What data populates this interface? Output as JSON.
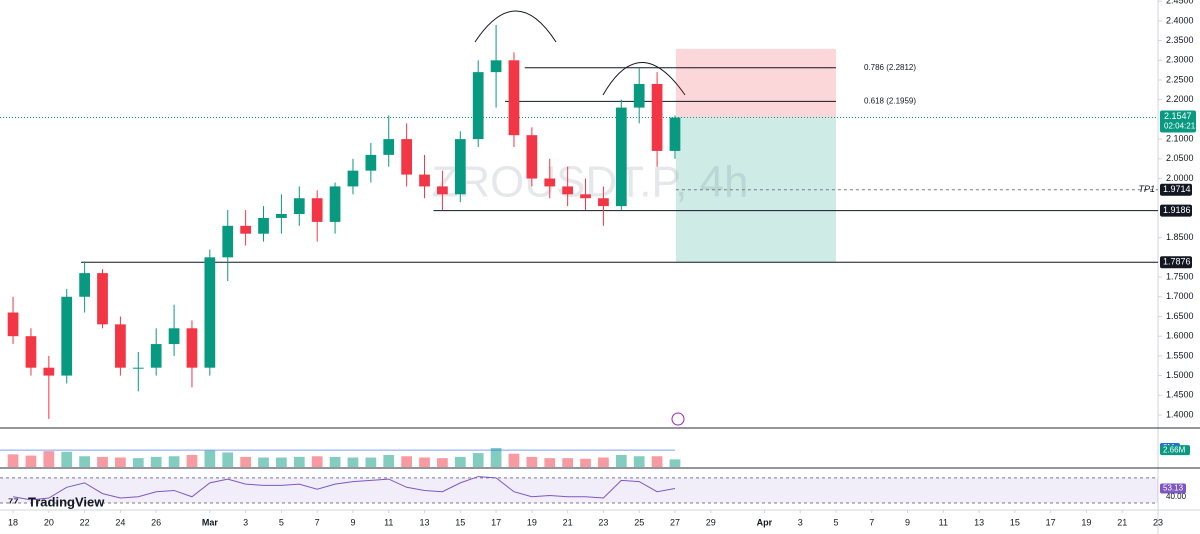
{
  "chart_data": {
    "type": "candlestick",
    "watermark": "ZROUSDT.P, 4h",
    "brand": "TradingView",
    "x": [
      18,
      19,
      20,
      21,
      22,
      23,
      24,
      25,
      26,
      27,
      28,
      29,
      30,
      31,
      32,
      33,
      34,
      35,
      36,
      37,
      38,
      39,
      40,
      41,
      42,
      43,
      44,
      45,
      46,
      47,
      48,
      49,
      50,
      51,
      52,
      53,
      54,
      55
    ],
    "open": [
      1.66,
      1.6,
      1.52,
      1.5,
      1.7,
      1.76,
      1.63,
      1.52,
      1.52,
      1.58,
      1.62,
      1.52,
      1.8,
      1.88,
      1.86,
      1.9,
      1.91,
      1.95,
      1.89,
      1.98,
      2.02,
      2.06,
      2.1,
      2.01,
      1.98,
      1.96,
      2.1,
      2.27,
      2.3,
      2.11,
      2.0,
      1.98,
      1.96,
      1.95,
      1.93,
      2.18,
      2.24,
      2.07
    ],
    "high": [
      1.7,
      1.62,
      1.55,
      1.72,
      1.79,
      1.77,
      1.65,
      1.56,
      1.62,
      1.68,
      1.64,
      1.82,
      1.92,
      1.92,
      1.93,
      1.96,
      1.98,
      1.97,
      1.99,
      2.05,
      2.09,
      2.16,
      2.14,
      2.06,
      2.02,
      2.12,
      2.3,
      2.39,
      2.32,
      2.13,
      2.05,
      2.03,
      2.0,
      1.98,
      2.2,
      2.28,
      2.27,
      2.16
    ],
    "low": [
      1.58,
      1.5,
      1.39,
      1.48,
      1.66,
      1.62,
      1.5,
      1.46,
      1.5,
      1.55,
      1.47,
      1.5,
      1.74,
      1.83,
      1.84,
      1.86,
      1.88,
      1.84,
      1.86,
      1.96,
      1.99,
      2.03,
      1.98,
      1.95,
      1.92,
      1.94,
      2.08,
      2.18,
      2.08,
      1.98,
      1.95,
      1.93,
      1.92,
      1.88,
      1.92,
      2.14,
      2.03,
      2.05
    ],
    "close": [
      1.6,
      1.52,
      1.5,
      1.7,
      1.76,
      1.63,
      1.52,
      1.52,
      1.58,
      1.62,
      1.52,
      1.8,
      1.88,
      1.86,
      1.9,
      1.91,
      1.95,
      1.89,
      1.98,
      2.02,
      2.06,
      2.1,
      2.01,
      1.98,
      1.96,
      2.1,
      2.27,
      2.3,
      2.11,
      2.0,
      1.98,
      1.96,
      1.95,
      1.93,
      2.18,
      2.24,
      2.07,
      2.1547
    ],
    "up_color": "#089981",
    "down_color": "#f23645",
    "xlim": [
      17.27,
      82.0
    ],
    "xticks": [
      {
        "value": 18,
        "label": "18"
      },
      {
        "value": 20,
        "label": "20"
      },
      {
        "value": 22,
        "label": "22"
      },
      {
        "value": 24,
        "label": "24"
      },
      {
        "value": 26,
        "label": "26"
      },
      {
        "value": 29,
        "label": "Mar"
      },
      {
        "value": 31,
        "label": "3"
      },
      {
        "value": 33,
        "label": "5"
      },
      {
        "value": 35,
        "label": "7"
      },
      {
        "value": 37,
        "label": "9"
      },
      {
        "value": 39,
        "label": "11"
      },
      {
        "value": 41,
        "label": "13"
      },
      {
        "value": 43,
        "label": "15"
      },
      {
        "value": 45,
        "label": "17"
      },
      {
        "value": 47,
        "label": "19"
      },
      {
        "value": 49,
        "label": "21"
      },
      {
        "value": 51,
        "label": "23"
      },
      {
        "value": 53,
        "label": "25"
      },
      {
        "value": 55,
        "label": "27"
      },
      {
        "value": 57,
        "label": "29"
      },
      {
        "value": 60,
        "label": "Apr"
      },
      {
        "value": 62,
        "label": "3"
      },
      {
        "value": 64,
        "label": "5"
      },
      {
        "value": 66,
        "label": "7"
      },
      {
        "value": 68,
        "label": "9"
      },
      {
        "value": 70,
        "label": "11"
      },
      {
        "value": 72,
        "label": "13"
      },
      {
        "value": 74,
        "label": "15"
      },
      {
        "value": 76,
        "label": "17"
      },
      {
        "value": 78,
        "label": "19"
      },
      {
        "value": 80,
        "label": "21"
      },
      {
        "value": 82,
        "label": "23"
      }
    ],
    "ylim": [
      1.367,
      2.453
    ],
    "yticks": [
      {
        "value": 1.4,
        "label": "1.4000"
      },
      {
        "value": 1.45,
        "label": "1.4500"
      },
      {
        "value": 1.5,
        "label": "1.5000"
      },
      {
        "value": 1.55,
        "label": "1.5500"
      },
      {
        "value": 1.6,
        "label": "1.6000"
      },
      {
        "value": 1.65,
        "label": "1.6500"
      },
      {
        "value": 1.7,
        "label": "1.7000"
      },
      {
        "value": 1.75,
        "label": "1.7500"
      },
      {
        "value": 1.85,
        "label": "1.8500"
      },
      {
        "value": 2.0,
        "label": "2.0000"
      },
      {
        "value": 2.05,
        "label": "2.0500"
      },
      {
        "value": 2.1,
        "label": "2.1000"
      },
      {
        "value": 2.2,
        "label": "2.2000"
      },
      {
        "value": 2.25,
        "label": "2.2500"
      },
      {
        "value": 2.3,
        "label": "2.3000"
      },
      {
        "value": 2.35,
        "label": "2.3500"
      },
      {
        "value": 2.4,
        "label": "2.4000"
      },
      {
        "value": 2.45,
        "label": "2.4500"
      }
    ],
    "grid": false,
    "levels": [
      {
        "value": 1.7876,
        "label": "1.7876",
        "from": 21.8
      },
      {
        "value": 1.9186,
        "label": "1.9186",
        "from": 41.5
      }
    ],
    "target": {
      "value": 1.9714,
      "label": "1.9714",
      "name": "TP1",
      "from": 55.05
    },
    "fib": [
      {
        "value": 2.2812,
        "label": "0.786 (2.2812)",
        "from": 46.6,
        "to": 64.0
      },
      {
        "value": 2.1959,
        "label": "0.618 (2.1959)",
        "from": 45.5,
        "to": 64.0
      }
    ],
    "position": {
      "from": 55.05,
      "to": 64.0,
      "entry": 2.1547,
      "stop": 2.329,
      "target": 1.7876
    },
    "current": {
      "value": 2.1547,
      "label": "2.1547",
      "countdown": "02:04:21"
    },
    "volume": [
      2.0,
      1.8,
      2.5,
      2.4,
      1.7,
      1.6,
      1.5,
      1.4,
      1.6,
      1.7,
      1.9,
      2.6,
      2.3,
      1.6,
      1.5,
      1.5,
      1.6,
      1.7,
      1.6,
      1.5,
      1.5,
      1.9,
      1.7,
      1.5,
      1.4,
      1.6,
      2.2,
      3.0,
      2.1,
      1.6,
      1.4,
      1.4,
      1.3,
      1.5,
      1.9,
      1.7,
      1.7,
      1.2
    ],
    "volume_ylim": [
      0,
      6
    ],
    "volume_ticks": [
      {
        "value": 3,
        "label": "3M"
      }
    ],
    "volume_ma": {
      "value": 2.66,
      "label": "2.66M"
    },
    "rsi": [
      40,
      35,
      38,
      55,
      62,
      45,
      38,
      40,
      48,
      50,
      40,
      62,
      68,
      60,
      58,
      58,
      60,
      52,
      60,
      64,
      66,
      68,
      55,
      50,
      48,
      62,
      72,
      70,
      48,
      40,
      42,
      40,
      40,
      38,
      66,
      64,
      48,
      53.13
    ],
    "rsi_ylim": [
      19,
      84
    ],
    "rsi_ticks": [
      {
        "value": 40,
        "label": "40.00"
      }
    ],
    "rsi_band": [
      30,
      70
    ]
  }
}
